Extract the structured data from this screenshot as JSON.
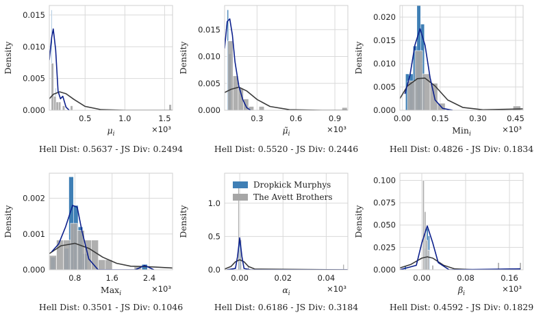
{
  "colors": {
    "series_a_bar": "#3f7fb5",
    "series_a_line": "#0b1f8c",
    "series_b_bar": "#a6a6a6",
    "series_b_line": "#3a3a3a",
    "grid": "#d9d9d9",
    "axis": "#cfcfcf"
  },
  "legend": {
    "series_a": "Dropkick Murphys",
    "series_b": "The Avett Brothers"
  },
  "chart_data": [
    {
      "type": "histogram+kde",
      "xlabel": "μ",
      "xlabel_sub": "i",
      "ylabel": "Density",
      "xlim": [
        0.05,
        1.6
      ],
      "ylim": [
        0,
        0.0165
      ],
      "xticks": [
        0.5,
        1.0,
        1.5
      ],
      "xtick_labels": [
        "0.5",
        "1.0",
        "1.5"
      ],
      "yticks": [
        0,
        0.005,
        0.01,
        0.015
      ],
      "ytick_labels": [
        "0.000",
        "0.005",
        "0.010",
        "0.015"
      ],
      "multiplier": "×10³",
      "footer": "Hell Dist: 0.5637 - JS Div: 0.2494",
      "series_a": {
        "bars": [
          [
            0.08,
            0.005,
            0.0158
          ],
          [
            0.13,
            0.005,
            0.0035
          ]
        ],
        "kde": [
          [
            0.05,
            0.0079
          ],
          [
            0.08,
            0.0115
          ],
          [
            0.1,
            0.0128
          ],
          [
            0.13,
            0.0095
          ],
          [
            0.16,
            0.003
          ],
          [
            0.19,
            0.0018
          ],
          [
            0.22,
            0.0022
          ],
          [
            0.26,
            0.0005
          ],
          [
            0.3,
            0.0
          ]
        ]
      },
      "series_b": {
        "bars": [
          [
            0.09,
            0.03,
            0.0074
          ],
          [
            0.12,
            0.03,
            0.0022
          ],
          [
            0.15,
            0.03,
            0.0013
          ],
          [
            0.18,
            0.03,
            0.0013
          ],
          [
            0.23,
            0.03,
            0.0007
          ],
          [
            0.33,
            0.03,
            0.0007
          ],
          [
            1.57,
            0.03,
            0.0009
          ]
        ],
        "kde": [
          [
            0.05,
            0.0018
          ],
          [
            0.1,
            0.0025
          ],
          [
            0.18,
            0.0029
          ],
          [
            0.26,
            0.0026
          ],
          [
            0.36,
            0.0017
          ],
          [
            0.5,
            0.0006
          ],
          [
            0.7,
            0.0001
          ],
          [
            1.0,
            0.0
          ],
          [
            1.4,
            0.0
          ],
          [
            1.6,
            0.0
          ]
        ]
      }
    },
    {
      "type": "histogram+kde",
      "xlabel": "μ̃",
      "xlabel_sub": "i",
      "ylabel": "Density",
      "xlim": [
        0.05,
        1.0
      ],
      "ylim": [
        0,
        0.0195
      ],
      "xticks": [
        0.3,
        0.6,
        0.9
      ],
      "xtick_labels": [
        "0.3",
        "0.6",
        "0.9"
      ],
      "yticks": [
        0,
        0.005,
        0.01,
        0.015
      ],
      "ytick_labels": [
        "0.000",
        "0.005",
        "0.010",
        "0.015"
      ],
      "multiplier": "×10³",
      "footer": "Hell Dist: 0.5520 - JS Div: 0.2446",
      "series_a": {
        "bars": [
          [
            0.075,
            0.01,
            0.0187
          ],
          [
            0.09,
            0.02,
            0.0105
          ]
        ],
        "kde": [
          [
            0.05,
            0.0115
          ],
          [
            0.07,
            0.0165
          ],
          [
            0.09,
            0.017
          ],
          [
            0.11,
            0.014
          ],
          [
            0.13,
            0.009
          ],
          [
            0.16,
            0.0045
          ],
          [
            0.19,
            0.002
          ],
          [
            0.22,
            0.0005
          ],
          [
            0.25,
            0.0
          ]
        ]
      },
      "series_b": {
        "bars": [
          [
            0.095,
            0.04,
            0.0129
          ],
          [
            0.135,
            0.04,
            0.0064
          ],
          [
            0.175,
            0.04,
            0.0041
          ],
          [
            0.215,
            0.04,
            0.0021
          ],
          [
            0.255,
            0.04,
            0.0007
          ],
          [
            0.335,
            0.04,
            0.0007
          ],
          [
            0.975,
            0.04,
            0.0005
          ]
        ],
        "kde": [
          [
            0.05,
            0.0033
          ],
          [
            0.1,
            0.0039
          ],
          [
            0.16,
            0.0043
          ],
          [
            0.22,
            0.0036
          ],
          [
            0.3,
            0.002
          ],
          [
            0.4,
            0.0007
          ],
          [
            0.55,
            0.0001
          ],
          [
            0.8,
            0.0
          ],
          [
            1.0,
            0.0
          ]
        ]
      }
    },
    {
      "type": "histogram+kde",
      "xlabel": "Min",
      "xlabel_sub": "i",
      "ylabel": "Density",
      "xlim": [
        -0.01,
        0.48
      ],
      "ylim": [
        0,
        0.0225
      ],
      "xticks": [
        0.0,
        0.15,
        0.3,
        0.45
      ],
      "xtick_labels": [
        "0.00",
        "0.15",
        "0.30",
        "0.45"
      ],
      "yticks": [
        0,
        0.005,
        0.01,
        0.015,
        0.02
      ],
      "ytick_labels": [
        "0.000",
        "0.005",
        "0.010",
        "0.015",
        "0.020"
      ],
      "multiplier": "×10³",
      "footer": "Hell Dist: 0.4826 - JS Div: 0.1834",
      "series_a": {
        "bars": [
          [
            0.02,
            0.015,
            0.0078
          ],
          [
            0.035,
            0.015,
            0.0078
          ],
          [
            0.05,
            0.015,
            0.0138
          ],
          [
            0.065,
            0.015,
            0.0225
          ],
          [
            0.08,
            0.015,
            0.0185
          ]
        ],
        "kde": [
          [
            0.01,
            0.0035
          ],
          [
            0.03,
            0.0075
          ],
          [
            0.05,
            0.014
          ],
          [
            0.07,
            0.0175
          ],
          [
            0.09,
            0.014
          ],
          [
            0.11,
            0.007
          ],
          [
            0.13,
            0.0022
          ],
          [
            0.16,
            0.0004
          ],
          [
            0.2,
            0.0
          ]
        ]
      },
      "series_b": {
        "bars": [
          [
            0.035,
            0.03,
            0.0063
          ],
          [
            0.065,
            0.03,
            0.0128
          ],
          [
            0.095,
            0.03,
            0.0078
          ],
          [
            0.125,
            0.03,
            0.0058
          ],
          [
            0.155,
            0.03,
            0.0015
          ],
          [
            0.455,
            0.03,
            0.0009
          ]
        ],
        "kde": [
          [
            -0.01,
            0.0025
          ],
          [
            0.02,
            0.0052
          ],
          [
            0.06,
            0.0068
          ],
          [
            0.09,
            0.0069
          ],
          [
            0.13,
            0.0052
          ],
          [
            0.18,
            0.0022
          ],
          [
            0.24,
            0.0006
          ],
          [
            0.32,
            0.0001
          ],
          [
            0.48,
            0.0003
          ]
        ]
      }
    },
    {
      "type": "histogram+kde",
      "xlabel": "Max",
      "xlabel_sub": "i",
      "ylabel": "Density",
      "xlim": [
        0.25,
        2.9
      ],
      "ylim": [
        0,
        0.0027
      ],
      "xticks": [
        0.8,
        1.6,
        2.4
      ],
      "xtick_labels": [
        "0.8",
        "1.6",
        "2.4"
      ],
      "yticks": [
        0,
        0.001,
        0.002
      ],
      "ytick_labels": [
        "0.000",
        "0.001",
        "0.002"
      ],
      "multiplier": "×10³",
      "footer": "Hell Dist: 0.3501 - JS Div: 0.1046",
      "series_a": {
        "bars": [
          [
            0.33,
            0.1,
            0.00035
          ],
          [
            0.62,
            0.1,
            0.0006
          ],
          [
            0.72,
            0.1,
            0.0026
          ],
          [
            0.82,
            0.1,
            0.0018
          ],
          [
            0.92,
            0.1,
            0.0012
          ],
          [
            1.02,
            0.1,
            0.00045
          ],
          [
            2.3,
            0.12,
            0.00015
          ]
        ],
        "kde": [
          [
            0.3,
            0.0005
          ],
          [
            0.45,
            0.00072
          ],
          [
            0.6,
            0.0012
          ],
          [
            0.75,
            0.0018
          ],
          [
            0.85,
            0.00175
          ],
          [
            0.95,
            0.0011
          ],
          [
            1.1,
            0.0003
          ],
          [
            1.3,
            0.0
          ],
          [
            2.1,
            0.0
          ],
          [
            2.3,
            0.00012
          ],
          [
            2.5,
            0.0
          ]
        ]
      },
      "series_b": {
        "bars": [
          [
            0.33,
            0.15,
            0.0004
          ],
          [
            0.48,
            0.15,
            0.00083
          ],
          [
            0.63,
            0.15,
            0.00083
          ],
          [
            0.78,
            0.15,
            0.0013
          ],
          [
            0.93,
            0.15,
            0.0011
          ],
          [
            1.08,
            0.15,
            0.00083
          ],
          [
            1.23,
            0.15,
            0.00083
          ],
          [
            1.38,
            0.15,
            0.00028
          ],
          [
            1.53,
            0.15,
            0.00028
          ],
          [
            2.15,
            0.15,
            8e-05
          ]
        ],
        "kde": [
          [
            0.25,
            0.00045
          ],
          [
            0.5,
            0.00067
          ],
          [
            0.8,
            0.00074
          ],
          [
            1.1,
            0.0006
          ],
          [
            1.4,
            0.00035
          ],
          [
            1.7,
            0.00018
          ],
          [
            2.0,
            0.0001
          ],
          [
            2.3,
            9e-05
          ],
          [
            2.6,
            7e-05
          ],
          [
            2.9,
            5e-05
          ]
        ]
      }
    },
    {
      "type": "histogram+kde",
      "xlabel": "α",
      "xlabel_sub": "i",
      "ylabel": "Density",
      "xlim": [
        -0.007,
        0.05
      ],
      "ylim": [
        0,
        1.45
      ],
      "xticks": [
        0.0,
        0.02,
        0.04
      ],
      "xtick_labels": [
        "0.00",
        "0.02",
        "0.04"
      ],
      "yticks": [
        0,
        0.5,
        1.0
      ],
      "ytick_labels": [
        "0.0",
        "0.5",
        "1.0"
      ],
      "multiplier": "×10³",
      "footer": "Hell Dist: 0.6186 - JS Div: 0.3184",
      "series_a": {
        "bars": [
          [
            0.0,
            0.0006,
            0.48
          ]
        ],
        "kde": [
          [
            -0.006,
            0.0
          ],
          [
            -0.002,
            0.02
          ],
          [
            -0.001,
            0.2
          ],
          [
            0.0,
            0.48
          ],
          [
            0.001,
            0.2
          ],
          [
            0.002,
            0.02
          ],
          [
            0.005,
            0.0
          ],
          [
            0.05,
            0.0
          ]
        ]
      },
      "series_b": {
        "bars": [
          [
            -0.0005,
            0.0006,
            1.32
          ],
          [
            0.0005,
            0.0006,
            0.45
          ],
          [
            0.004,
            0.0006,
            0.05
          ],
          [
            0.048,
            0.0006,
            0.08
          ]
        ],
        "kde": [
          [
            -0.007,
            0.01
          ],
          [
            -0.004,
            0.05
          ],
          [
            -0.002,
            0.12
          ],
          [
            0.0,
            0.15
          ],
          [
            0.002,
            0.12
          ],
          [
            0.004,
            0.05
          ],
          [
            0.007,
            0.01
          ],
          [
            0.05,
            0.0
          ]
        ]
      }
    },
    {
      "type": "histogram+kde",
      "xlabel": "β",
      "xlabel_sub": "i",
      "ylabel": "Density",
      "xlim": [
        -0.04,
        0.185
      ],
      "ylim": [
        0,
        0.108
      ],
      "xticks": [
        0.0,
        0.08,
        0.16
      ],
      "xtick_labels": [
        "0.00",
        "0.08",
        "0.16"
      ],
      "yticks": [
        0,
        0.025,
        0.05,
        0.075,
        0.1
      ],
      "ytick_labels": [
        "0.000",
        "0.025",
        "0.050",
        "0.075",
        "0.100"
      ],
      "multiplier": "×10³",
      "footer": "Hell Dist: 0.4592 - JS Div: 0.1829",
      "series_a": {
        "bars": [
          [
            -0.03,
            0.003,
            0.004
          ],
          [
            0.006,
            0.003,
            0.024
          ],
          [
            0.01,
            0.003,
            0.046
          ],
          [
            0.013,
            0.003,
            0.038
          ]
        ],
        "kde": [
          [
            -0.04,
            0.0
          ],
          [
            -0.01,
            0.005
          ],
          [
            0.0,
            0.03
          ],
          [
            0.01,
            0.049
          ],
          [
            0.02,
            0.03
          ],
          [
            0.03,
            0.008
          ],
          [
            0.05,
            0.0
          ],
          [
            0.18,
            0.001
          ]
        ]
      },
      "series_b": {
        "bars": [
          [
            0.0,
            0.003,
            0.0
          ],
          [
            0.003,
            0.003,
            0.1
          ],
          [
            0.006,
            0.003,
            0.065
          ],
          [
            0.009,
            0.003,
            0.033
          ],
          [
            0.012,
            0.003,
            0.022
          ],
          [
            0.02,
            0.003,
            0.005
          ],
          [
            0.14,
            0.003,
            0.008
          ],
          [
            0.18,
            0.003,
            0.008
          ]
        ],
        "kde": [
          [
            -0.04,
            0.002
          ],
          [
            -0.02,
            0.006
          ],
          [
            0.0,
            0.013
          ],
          [
            0.01,
            0.0145
          ],
          [
            0.02,
            0.013
          ],
          [
            0.04,
            0.005
          ],
          [
            0.06,
            0.001
          ],
          [
            0.1,
            0.0
          ],
          [
            0.18,
            0.001
          ]
        ]
      }
    }
  ]
}
